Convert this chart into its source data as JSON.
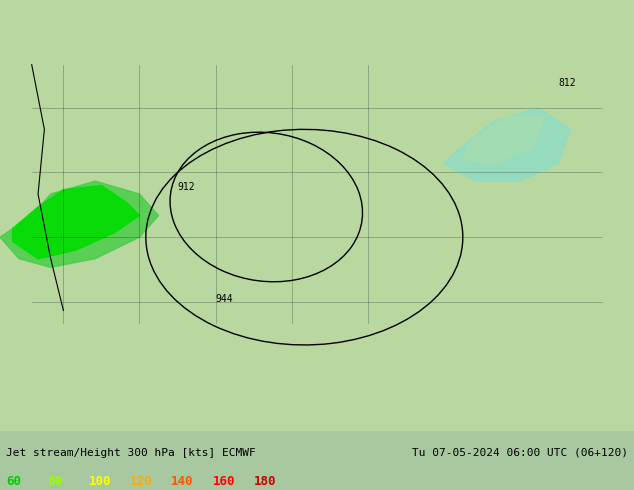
{
  "title_left": "Jet stream/Height 300 hPa [kts] ECMWF",
  "title_right": "Tu 07-05-2024 06:00 UTC (06+120)",
  "legend_values": [
    "60",
    "80",
    "100",
    "120",
    "140",
    "160",
    "180"
  ],
  "legend_colors": [
    "#00cc00",
    "#99ff00",
    "#ffff00",
    "#ffaa00",
    "#ff5500",
    "#ff0000",
    "#cc0000"
  ],
  "bg_color": "#a8d8a0",
  "contour_labels": [
    "912",
    "944",
    "812"
  ],
  "fig_width": 6.34,
  "fig_height": 4.9,
  "dpi": 100
}
